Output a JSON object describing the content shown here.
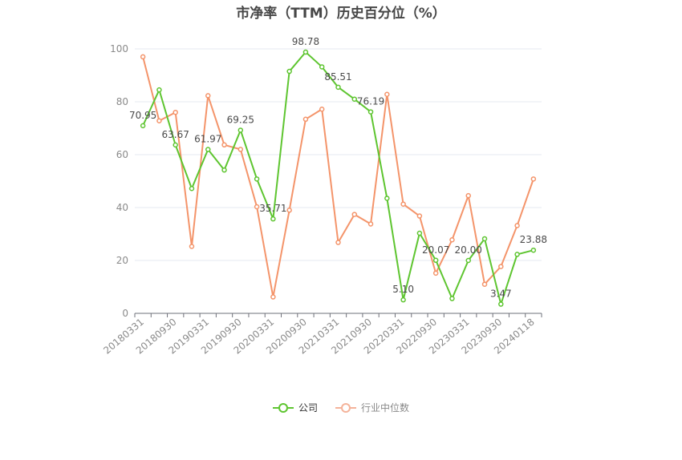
{
  "chart_data": {
    "type": "line",
    "title": "市净率（TTM）历史百分位（%）",
    "ylim": [
      0,
      100
    ],
    "yticks": [
      0,
      20,
      40,
      60,
      80,
      100
    ],
    "x_tick_labels": [
      "20180331",
      "20180930",
      "20190331",
      "20190930",
      "20200331",
      "20200930",
      "20210331",
      "20210930",
      "20220331",
      "20220930",
      "20230331",
      "20230930",
      "20240118"
    ],
    "grid": true,
    "legend_position": "bottom",
    "series": [
      {
        "name": "公司",
        "color": "#5ec530",
        "values": [
          70.95,
          84.5,
          63.67,
          47.2,
          61.97,
          54.2,
          69.25,
          50.8,
          35.71,
          91.5,
          98.78,
          93.2,
          85.51,
          81.0,
          76.19,
          43.5,
          5.1,
          30.3,
          20.07,
          5.6,
          20.0,
          28.2,
          3.47,
          22.3,
          23.88
        ]
      },
      {
        "name": "行业中位数",
        "color": "#f4946a",
        "values": [
          97.0,
          72.8,
          76.0,
          25.3,
          82.3,
          63.7,
          62.0,
          40.3,
          6.2,
          39.0,
          73.4,
          77.2,
          26.8,
          37.4,
          33.8,
          82.8,
          41.3,
          36.8,
          15.2,
          27.8,
          44.5,
          11.0,
          17.7,
          33.2,
          50.8
        ]
      }
    ],
    "data_labels": [
      {
        "series": 0,
        "index": 0,
        "text": "70.95"
      },
      {
        "series": 0,
        "index": 2,
        "text": "63.67"
      },
      {
        "series": 0,
        "index": 4,
        "text": "61.97"
      },
      {
        "series": 0,
        "index": 6,
        "text": "69.25"
      },
      {
        "series": 0,
        "index": 8,
        "text": "35.71"
      },
      {
        "series": 0,
        "index": 10,
        "text": "98.78"
      },
      {
        "series": 0,
        "index": 12,
        "text": "85.51"
      },
      {
        "series": 0,
        "index": 14,
        "text": "76.19"
      },
      {
        "series": 0,
        "index": 16,
        "text": "5.10"
      },
      {
        "series": 0,
        "index": 18,
        "text": "20.07"
      },
      {
        "series": 0,
        "index": 20,
        "text": "20.00"
      },
      {
        "series": 0,
        "index": 22,
        "text": "3.47"
      },
      {
        "series": 0,
        "index": 24,
        "text": "23.88"
      }
    ]
  },
  "legend": {
    "items": [
      {
        "label": "公司",
        "color": "#5ec530"
      },
      {
        "label": "行业中位数",
        "color": "#f4b39a"
      }
    ]
  }
}
